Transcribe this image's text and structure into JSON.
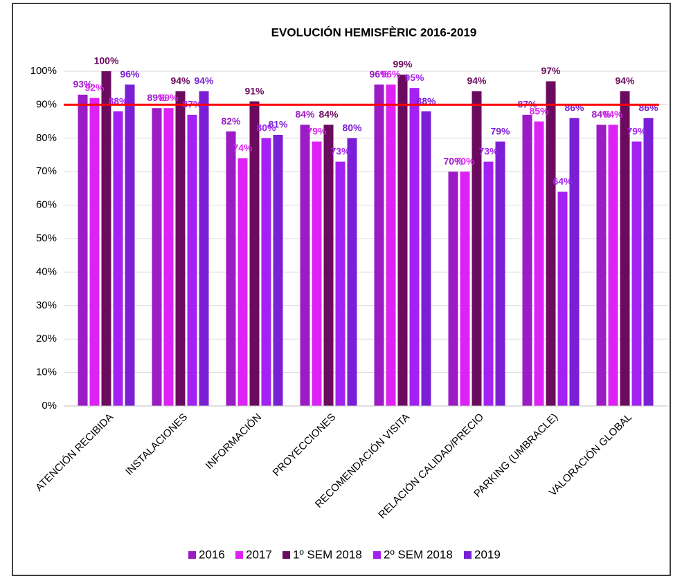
{
  "chart_data": {
    "type": "bar",
    "title": "EVOLUCIÓN HEMISFÈRIC 2016-2019",
    "categories": [
      "ATENCIÓN RECIBIDA",
      "INSTALACIONES",
      "INFORMACIÓN",
      "PROYECCIONES",
      "RECOMENDACIÓN VISITA",
      "RELACIÓN CALIDAD/PRECIO",
      "PARKING (UMBRACLE)",
      "VALORACIÓN GLOBAL"
    ],
    "series": [
      {
        "name": "2016",
        "color": "#9b1bc4",
        "values": [
          93,
          89,
          82,
          84,
          96,
          70,
          87,
          84
        ],
        "value_labels": [
          "93%",
          "89%",
          "82%",
          "84%",
          "96%",
          "70%",
          "87%",
          "84%"
        ]
      },
      {
        "name": "2017",
        "color": "#dd22f5",
        "values": [
          92,
          89,
          74,
          79,
          96,
          70,
          85,
          84
        ],
        "value_labels": [
          "92%",
          "89%",
          "74%",
          "79%",
          "96%",
          "70%",
          "85%",
          "84%"
        ]
      },
      {
        "name": "1º SEM 2018",
        "color": "#6b0b5e",
        "values": [
          100,
          94,
          91,
          84,
          99,
          94,
          97,
          94
        ],
        "value_labels": [
          "100%",
          "94%",
          "91%",
          "84%",
          "99%",
          "94%",
          "97%",
          "94%"
        ]
      },
      {
        "name": "2º SEM 2018",
        "color": "#a321f2",
        "values": [
          88,
          87,
          80,
          73,
          95,
          73,
          64,
          79
        ],
        "value_labels": [
          "88%",
          "87%",
          "80%",
          "73%",
          "95%",
          "73%",
          "64%",
          "79%"
        ]
      },
      {
        "name": "2019",
        "color": "#7a1fd6",
        "values": [
          96,
          94,
          81,
          80,
          88,
          79,
          86,
          86
        ],
        "value_labels": [
          "96%",
          "94%",
          "81%",
          "80%",
          "88%",
          "79%",
          "86%",
          "86%"
        ]
      }
    ],
    "ylim": [
      0,
      100
    ],
    "yticks": [
      {
        "value": 0,
        "label": "0%"
      },
      {
        "value": 10,
        "label": "10%"
      },
      {
        "value": 20,
        "label": "20%"
      },
      {
        "value": 30,
        "label": "30%"
      },
      {
        "value": 40,
        "label": "40%"
      },
      {
        "value": 50,
        "label": "50%"
      },
      {
        "value": 60,
        "label": "60%"
      },
      {
        "value": 70,
        "label": "70%"
      },
      {
        "value": 80,
        "label": "80%"
      },
      {
        "value": 90,
        "label": "90%"
      },
      {
        "value": 100,
        "label": "100%"
      }
    ],
    "grid": true,
    "legend": "bottom",
    "reference_line": {
      "value": 90,
      "color": "#ff0000"
    }
  }
}
